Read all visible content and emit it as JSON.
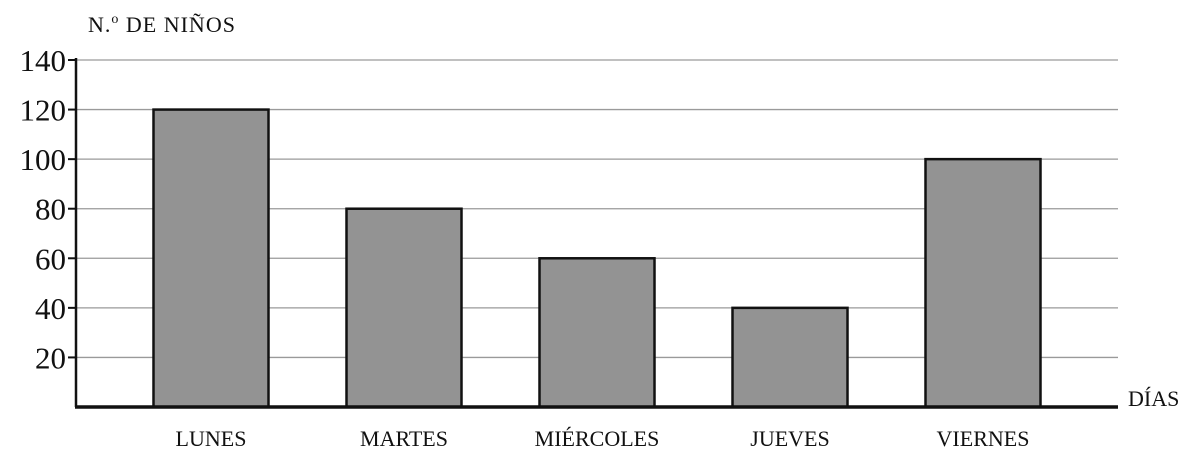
{
  "chart_data": {
    "type": "bar",
    "title": "",
    "ylabel_main": "N.",
    "ylabel_sup": "o",
    "ylabel_tail": " DE NIÑOS",
    "xlabel": "DÍAS",
    "categories": [
      "LUNES",
      "MARTES",
      "MIÉRCOLES",
      "JUEVES",
      "VIERNES"
    ],
    "values": [
      120,
      80,
      60,
      40,
      100
    ],
    "ylim": [
      0,
      140
    ],
    "yticks": [
      20,
      40,
      60,
      80,
      100,
      120,
      140
    ],
    "grid": true,
    "colors": {
      "bar_fill": "#939393",
      "bar_stroke": "#111111",
      "axis": "#111111",
      "grid": "#9a9a9a"
    }
  }
}
